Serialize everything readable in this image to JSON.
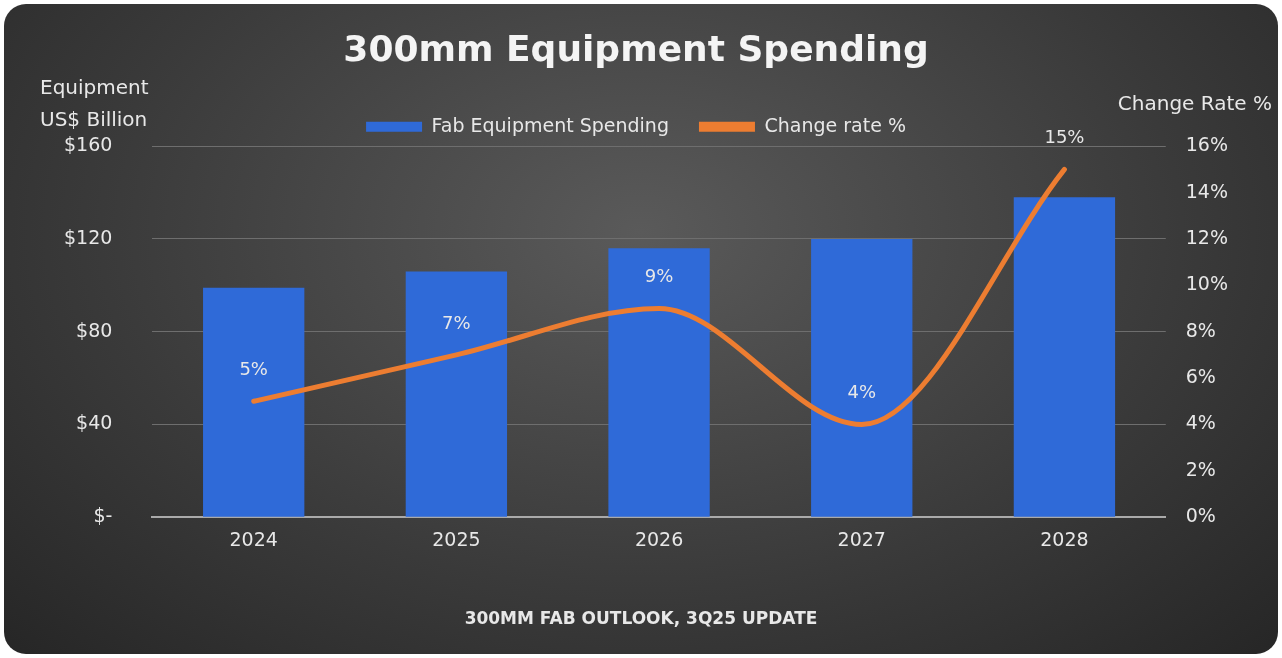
{
  "chart_data": {
    "type": "bar",
    "title": "300mm Equipment Spending",
    "ylabel": "Equipment\nUS$ Billion",
    "y2label": "Change Rate %",
    "categories": [
      "2024",
      "2025",
      "2026",
      "2027",
      "2028"
    ],
    "series": [
      {
        "name": "Fab Equipment Spending",
        "color": "#2f6ad8",
        "values": [
          99,
          106,
          116,
          120,
          138
        ]
      },
      {
        "name": "Change rate %",
        "type": "line",
        "axis": "y2",
        "color": "#ed7d31",
        "values": [
          5,
          7,
          9,
          4,
          15
        ],
        "value_labels": [
          "5%",
          "7%",
          "9%",
          "4%",
          "15%"
        ]
      }
    ],
    "ylim": [
      0,
      160
    ],
    "yticks": [
      {
        "value": 0,
        "label": "$-"
      },
      {
        "value": 40,
        "label": "$40"
      },
      {
        "value": 80,
        "label": "$80"
      },
      {
        "value": 120,
        "label": "$120"
      },
      {
        "value": 160,
        "label": "$160"
      }
    ],
    "y2lim": [
      0,
      16
    ],
    "y2ticks": [
      {
        "value": 0,
        "label": "0%"
      },
      {
        "value": 2,
        "label": "2%"
      },
      {
        "value": 4,
        "label": "4%"
      },
      {
        "value": 6,
        "label": "6%"
      },
      {
        "value": 8,
        "label": "8%"
      },
      {
        "value": 10,
        "label": "10%"
      },
      {
        "value": 12,
        "label": "12%"
      },
      {
        "value": 14,
        "label": "14%"
      },
      {
        "value": 16,
        "label": "16%"
      }
    ],
    "grid": "y",
    "legend": "top",
    "marker": "none",
    "annotations": [
      "300MM FAB OUTLOOK, 3Q25 UPDATE"
    ]
  }
}
